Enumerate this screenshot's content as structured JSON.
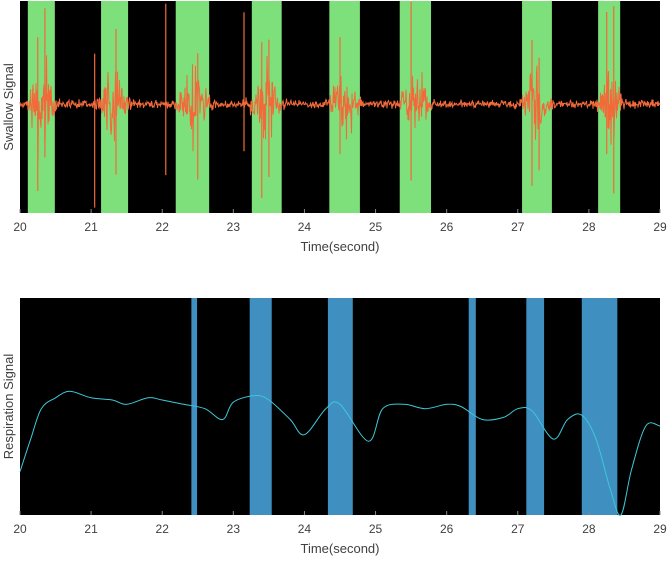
{
  "chart_data": [
    {
      "type": "line",
      "ylabel": "Swallow Signal",
      "xlabel": "Time(second)",
      "xlim": [
        20,
        29
      ],
      "xticks": [
        "20",
        "21",
        "22",
        "23",
        "24",
        "25",
        "26",
        "27",
        "28",
        "29"
      ],
      "colors": {
        "background": "#000000",
        "band": "#7ee07a",
        "signal": "#f26a3a"
      },
      "bands": [
        [
          20.11,
          20.49
        ],
        [
          21.14,
          21.52
        ],
        [
          22.19,
          22.66
        ],
        [
          23.26,
          23.68
        ],
        [
          24.35,
          24.78
        ],
        [
          25.34,
          25.78
        ],
        [
          27.06,
          27.48
        ],
        [
          28.13,
          28.44
        ]
      ],
      "bursts": [
        {
          "t": 20.3,
          "amp": 1.0,
          "width": 0.18
        },
        {
          "t": 21.3,
          "amp": 0.8,
          "width": 0.2
        },
        {
          "t": 22.45,
          "amp": 0.75,
          "width": 0.25
        },
        {
          "t": 23.45,
          "amp": 0.9,
          "width": 0.22
        },
        {
          "t": 24.55,
          "amp": 0.7,
          "width": 0.22
        },
        {
          "t": 25.55,
          "amp": 0.75,
          "width": 0.22
        },
        {
          "t": 27.25,
          "amp": 0.9,
          "width": 0.22
        },
        {
          "t": 28.3,
          "amp": 0.9,
          "width": 0.18
        }
      ],
      "spikes": [
        20.25,
        20.35,
        21.05,
        21.35,
        22.05,
        22.5,
        23.15,
        23.4,
        23.5,
        24.5,
        25.5,
        27.2,
        27.3,
        28.25,
        28.35
      ]
    },
    {
      "type": "line",
      "ylabel": "Respiration Signal",
      "xlabel": "Time(second)",
      "xlim": [
        20,
        29
      ],
      "ylim": [
        0,
        1
      ],
      "xticks": [
        "20",
        "21",
        "22",
        "23",
        "24",
        "25",
        "26",
        "27",
        "28",
        "29"
      ],
      "colors": {
        "background": "#000000",
        "band": "#3f8fc0",
        "signal": "#3ec8d8"
      },
      "bands": [
        [
          22.41,
          22.49
        ],
        [
          23.23,
          23.54
        ],
        [
          24.33,
          24.68
        ],
        [
          26.31,
          26.41
        ],
        [
          27.12,
          27.37
        ],
        [
          27.9,
          28.4
        ]
      ],
      "x": [
        20,
        20.15,
        20.3,
        20.5,
        20.7,
        21.0,
        21.3,
        21.5,
        21.8,
        22.0,
        22.3,
        22.6,
        22.85,
        23.0,
        23.3,
        23.5,
        23.8,
        24.0,
        24.3,
        24.5,
        24.9,
        25.1,
        25.4,
        25.7,
        26.0,
        26.2,
        26.5,
        26.8,
        27.0,
        27.2,
        27.5,
        27.7,
        27.9,
        28.1,
        28.3,
        28.45,
        28.6,
        28.8,
        29.0
      ],
      "y": [
        0.2,
        0.35,
        0.49,
        0.54,
        0.57,
        0.54,
        0.53,
        0.51,
        0.54,
        0.53,
        0.51,
        0.49,
        0.44,
        0.52,
        0.55,
        0.53,
        0.44,
        0.37,
        0.49,
        0.51,
        0.34,
        0.49,
        0.51,
        0.49,
        0.51,
        0.5,
        0.44,
        0.45,
        0.49,
        0.48,
        0.35,
        0.44,
        0.46,
        0.35,
        0.12,
        0.0,
        0.21,
        0.41,
        0.41
      ]
    }
  ]
}
